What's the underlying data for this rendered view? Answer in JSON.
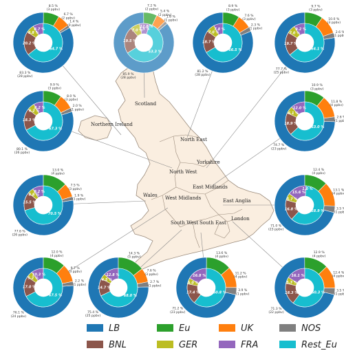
{
  "colors": {
    "LB": "#1f77b4",
    "Eu": "#2ca02c",
    "UK": "#ff7f0e",
    "NOS": "#7f7f7f",
    "BNL": "#8c564b",
    "GER": "#bcbd22",
    "FRA": "#9467bd",
    "Rest_Eu": "#17becf",
    "map_fill": "#faeee0",
    "map_stroke": "#9a8a7a"
  },
  "regions": [
    "Scotland",
    "Northern Ireland",
    "North East",
    "North West",
    "Yorkshire",
    "East Midlands",
    "Wales",
    "West Midlands",
    "East Anglia",
    "London",
    "South West",
    "South East"
  ],
  "legend": [
    "LB",
    "Eu",
    "UK",
    "NOS",
    "BNL",
    "GER",
    "FRA",
    "Rest_Eu"
  ],
  "chart_data": {
    "type": "pie",
    "outer_categories": [
      "LB",
      "Eu",
      "UK",
      "NOS"
    ],
    "inner_categories": [
      "BNL",
      "GER",
      "FRA",
      "Rest_Eu"
    ],
    "charts": [
      {
        "id": "r1c1",
        "outer": [
          83.3,
          8.5,
          6.7,
          1.4
        ],
        "outer_labels": [
          "83.3 %\n(28 ppbv)",
          "8.5 %\n(3 ppbv)",
          "6.7 %\n(2 ppbv)",
          "1.4 %\n(0 ppbv)"
        ],
        "inner": [
          20.2,
          6.8,
          8.7,
          64.7
        ],
        "inner_labels": [
          "20.2 %",
          "6.8 %",
          "8.7 %",
          "64.7 %"
        ]
      },
      {
        "id": "r1c2",
        "outer": [
          85.9,
          7.2,
          5.4,
          1.6
        ],
        "outer_labels": [
          "85.9 %\n(28 ppbv)",
          "7.2 %\n(2 ppbv)",
          "5.4 %\n(2 ppbv)",
          "1.6 %\n(1 ppbv)"
        ],
        "inner": [
          19.5,
          7.0,
          7.5,
          53.3
        ],
        "inner_labels": [
          "19.5 %",
          "7.0 %",
          "7.5 %",
          "53.3 %"
        ],
        "extra_inner": [
          "12.8 %"
        ]
      },
      {
        "id": "r1c3",
        "outer": [
          81.2,
          8.9,
          7.6,
          2.3
        ],
        "outer_labels": [
          "81.2 %\n(28 ppbv)",
          "8.9 %\n(3 ppbv)",
          "7.6 %\n(3 ppbv)",
          "2.3 %\n(1 ppbv)"
        ],
        "inner": [
          18.7,
          7.0,
          7.8,
          66.5
        ],
        "inner_labels": [
          "18.7 %",
          "7.0 %",
          "7.8 %",
          "66.5 %"
        ]
      },
      {
        "id": "r1c4",
        "outer": [
          77.7,
          9.7,
          10.0,
          2.6
        ],
        "outer_labels": [
          "77.7 %\n(25 ppbv)",
          "9.7 %\n(3 ppbv)",
          "10.0 %\n(3 ppbv)",
          "2.6 %\n(1 ppbv)"
        ],
        "inner": [
          19.7,
          7.0,
          9.2,
          64.1
        ],
        "inner_labels": [
          "19.7 %",
          "7.0 %",
          "9.2 %",
          "64.1 %"
        ]
      },
      {
        "id": "r2c1",
        "outer": [
          80.1,
          9.9,
          8.0,
          2.0
        ],
        "outer_labels": [
          "80.1 %\n(26 ppbv)",
          "9.9 %\n(3 ppbv)",
          "8.0 %\n(3 ppbv)",
          "2.0 %\n(1 ppbv)"
        ],
        "inner": [
          18.3,
          6.2,
          8.2,
          67.3
        ],
        "inner_labels": [
          "18.3 %",
          "6.2 %",
          "8.2 %",
          "67.3 %"
        ]
      },
      {
        "id": "r2c4",
        "outer": [
          74.7,
          10.9,
          11.8,
          2.6
        ],
        "outer_labels": [
          "74.7 %\n(23 ppbv)",
          "10.9 %\n(3 ppbv)",
          "11.8 %\n(4 ppbv)",
          "2.6 %\n(1 ppbv)"
        ],
        "inner": [
          18.9,
          6.1,
          12.0,
          63.0
        ],
        "inner_labels": [
          "18.9 %",
          "6.1 %",
          "12.0 %",
          "63.0 %"
        ]
      },
      {
        "id": "r3c1",
        "outer": [
          77.6,
          13.0,
          7.5,
          1.9
        ],
        "outer_labels": [
          "77.6 %\n(26 ppbv)",
          "13.0 %\n(4 ppbv)",
          "7.5 %\n(3 ppbv)",
          "1.9 %\n(1 ppbv)"
        ],
        "inner": [
          15.5,
          4.8,
          9.2,
          70.5
        ],
        "inner_labels": [
          "15.5 %",
          "4.8 %",
          "9.2 %",
          "70.5 %"
        ]
      },
      {
        "id": "r3c4",
        "outer": [
          71.0,
          12.4,
          13.1,
          3.5
        ],
        "outer_labels": [
          "71.0 %\n(23 ppbv)",
          "12.4 %\n(4 ppbv)",
          "13.1 %\n(4 ppbv)",
          "3.5 %\n(1 ppbv)"
        ],
        "inner": [
          16.8,
          5.7,
          15.6,
          58.9
        ],
        "inner_labels": [
          "16.8 %",
          "5.7 %",
          "15.6 %",
          "58.9 %"
        ],
        "extra_inner": [
          "1.0 %"
        ]
      },
      {
        "id": "r4c1",
        "outer": [
          76.1,
          12.0,
          9.7,
          2.2
        ],
        "outer_labels": [
          "76.1 %\n(24 ppbv)",
          "12.0 %\n(4 ppbv)",
          "9.7 %\n(3 ppbv)",
          "2.2 %\n(1 ppbv)"
        ],
        "inner": [
          17.0,
          5.2,
          10.3,
          67.5
        ],
        "inner_labels": [
          "17.0 %",
          "5.2 %",
          "10.3 %",
          "67.5 %"
        ]
      },
      {
        "id": "r4c2",
        "outer": [
          75.4,
          14.3,
          7.6,
          2.7
        ],
        "outer_labels": [
          "75.4 %\n(25 ppbv)",
          "14.3 %\n(5 ppbv)",
          "7.6 %\n(3 ppbv)",
          "2.7 %\n(1 ppbv)"
        ],
        "inner": [
          14.7,
          4.5,
          12.8,
          68.0
        ],
        "inner_labels": [
          "14.7 %",
          "4.5 %",
          "12.8 %",
          "68.0 %"
        ]
      },
      {
        "id": "r4c3",
        "outer": [
          71.2,
          13.6,
          11.2,
          3.9
        ],
        "outer_labels": [
          "71.2 %\n(23 ppbv)",
          "13.6 %\n(4 ppbv)",
          "11.2 %\n(4 ppbv)",
          "3.9 %\n(1 ppbv)"
        ],
        "inner": [
          17.4,
          5.0,
          16.8,
          60.8
        ],
        "inner_labels": [
          "17.4 %",
          "5.0 %",
          "16.8 %",
          "60.8 %"
        ]
      },
      {
        "id": "r4c4",
        "outer": [
          71.3,
          12.9,
          12.4,
          3.5
        ],
        "outer_labels": [
          "71.3 %\n(22 ppbv)",
          "12.9 %\n(4 ppbv)",
          "12.4 %\n(4 ppbv)",
          "3.5 %\n(1 ppbv)"
        ],
        "inner": [
          18.3,
          5.3,
          16.1,
          60.3
        ],
        "inner_labels": [
          "18.3 %",
          "5.3 %",
          "16.1 %",
          "60.3 %"
        ]
      }
    ]
  }
}
